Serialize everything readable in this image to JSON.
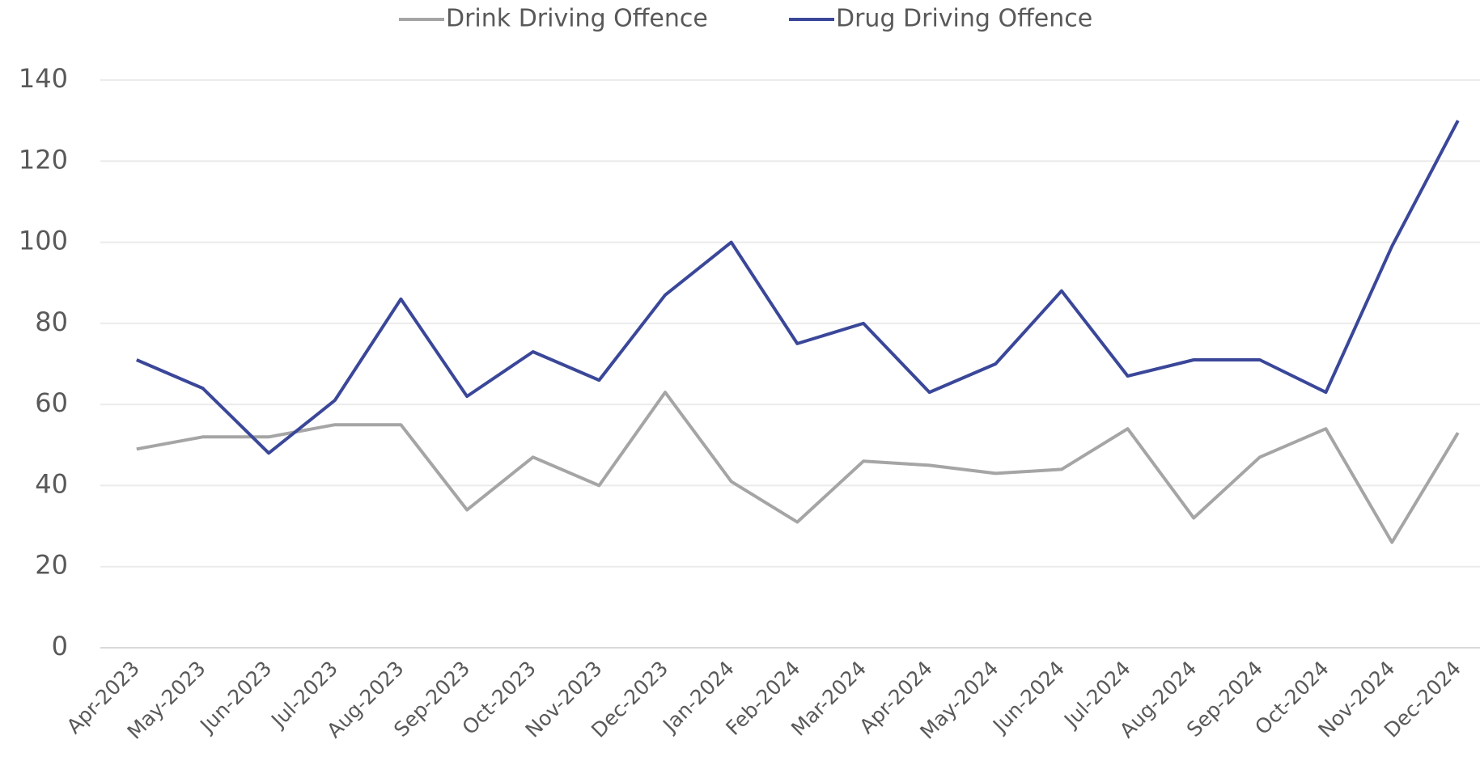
{
  "chart_data": {
    "type": "line",
    "categories": [
      "Apr-2023",
      "May-2023",
      "Jun-2023",
      "Jul-2023",
      "Aug-2023",
      "Sep-2023",
      "Oct-2023",
      "Nov-2023",
      "Dec-2023",
      "Jan-2024",
      "Feb-2024",
      "Mar-2024",
      "Apr-2024",
      "May-2024",
      "Jun-2024",
      "Jul-2024",
      "Aug-2024",
      "Sep-2024",
      "Oct-2024",
      "Nov-2024",
      "Dec-2024"
    ],
    "series": [
      {
        "name": "Drink Driving Offence",
        "color": "#a5a5a5",
        "values": [
          49,
          52,
          52,
          55,
          55,
          34,
          47,
          40,
          63,
          41,
          31,
          46,
          45,
          43,
          44,
          54,
          32,
          47,
          54,
          26,
          53
        ]
      },
      {
        "name": "Drug Driving Offence",
        "color": "#3a4799",
        "values": [
          71,
          64,
          48,
          61,
          86,
          62,
          73,
          66,
          87,
          100,
          75,
          80,
          63,
          70,
          88,
          67,
          71,
          71,
          63,
          99,
          130
        ]
      }
    ],
    "ylim": [
      0,
      140
    ],
    "yticks": [
      0,
      20,
      40,
      60,
      80,
      100,
      120,
      140
    ],
    "grid": true,
    "legend": "top"
  }
}
